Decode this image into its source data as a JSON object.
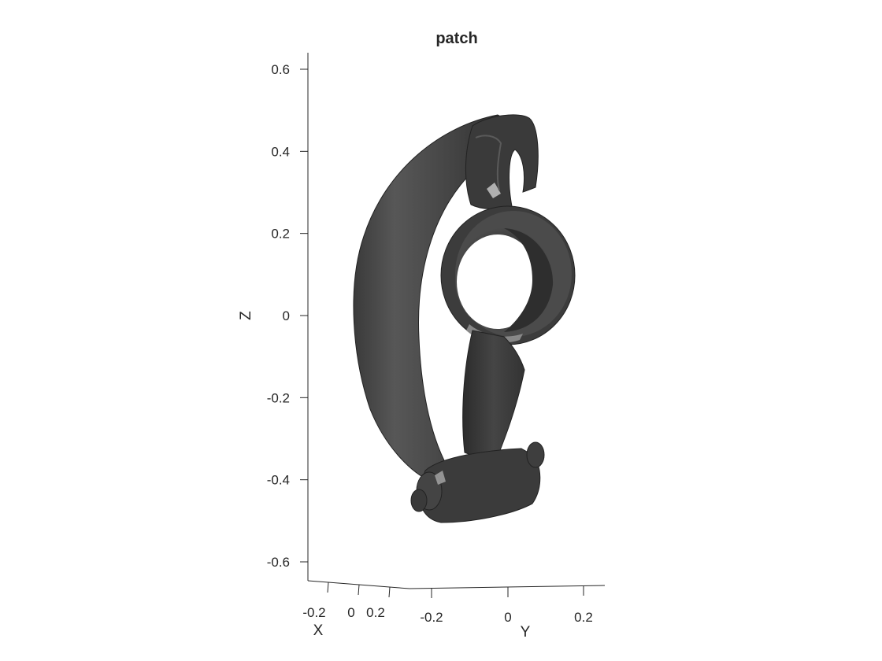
{
  "chart_data": {
    "type": "3d-surface-patch",
    "title": "patch",
    "xlabel": "X",
    "ylabel": "Y",
    "zlabel": "Z",
    "z_ticks": [
      "0.6",
      "0.4",
      "0.2",
      "0",
      "-0.2",
      "-0.4",
      "-0.6"
    ],
    "x_ticks": [
      "-0.2",
      "0",
      "0.2"
    ],
    "y_ticks": [
      "-0.2",
      "0",
      "0.2"
    ],
    "zlim": [
      -0.65,
      0.65
    ],
    "grid": false,
    "object": "rocker-arm mesh",
    "colors": {
      "surface_dark": "#2b2b2b",
      "surface_mid": "#4a4a4a",
      "surface_light": "#6e6e6e",
      "highlight": "#b5b5b5",
      "axis": "#262626"
    }
  }
}
